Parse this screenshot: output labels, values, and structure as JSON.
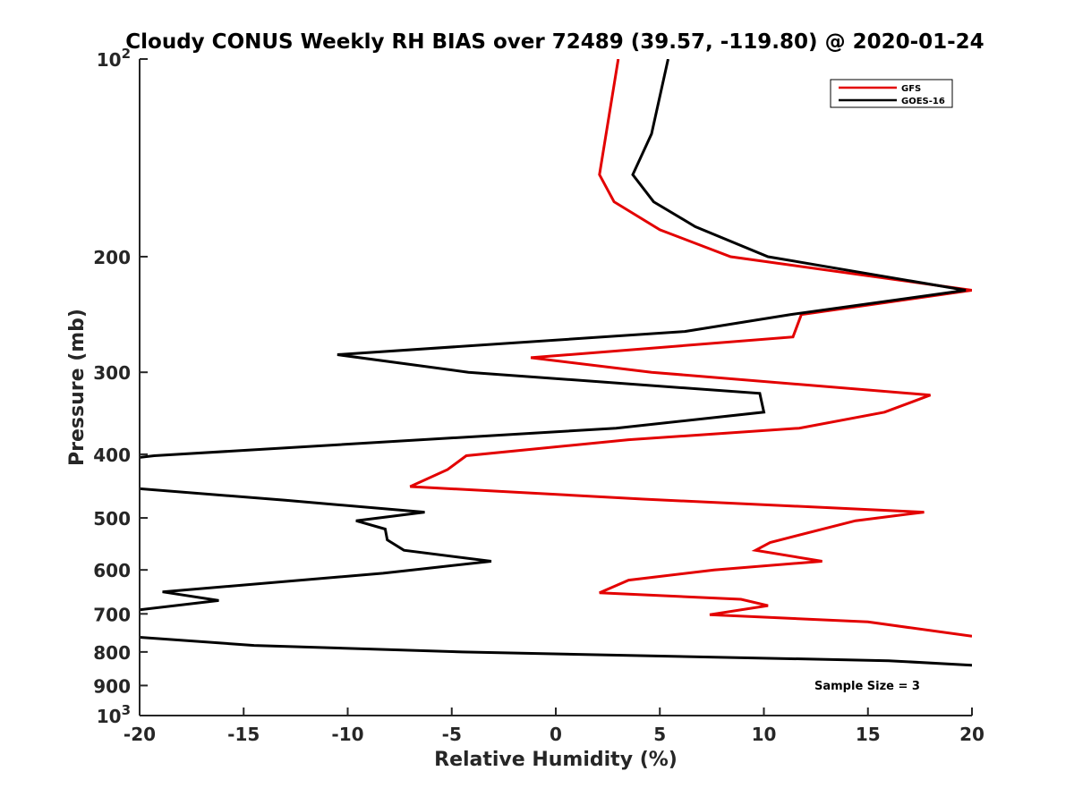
{
  "chart_data": {
    "type": "line",
    "title": "Cloudy CONUS Weekly RH BIAS over 72489 (39.57, -119.80) @ 2020-01-24",
    "xlabel": "Relative Humidity (%)",
    "ylabel": "Pressure (mb)",
    "xlim": [
      -20,
      20
    ],
    "ylim": [
      100,
      1000
    ],
    "y_scale": "log",
    "y_reversed": true,
    "x_ticks": [
      "-20",
      "-15",
      "-10",
      "-5",
      "0",
      "5",
      "10",
      "15",
      "20"
    ],
    "y_ticks": [
      {
        "value": 100,
        "base": "10",
        "exp": "2"
      },
      {
        "value": 200,
        "label": "200"
      },
      {
        "value": 300,
        "label": "300"
      },
      {
        "value": 400,
        "label": "400"
      },
      {
        "value": 500,
        "label": "500"
      },
      {
        "value": 600,
        "label": "600"
      },
      {
        "value": 700,
        "label": "700"
      },
      {
        "value": 800,
        "label": "800"
      },
      {
        "value": 900,
        "label": "900"
      },
      {
        "value": 1000,
        "base": "10",
        "exp": "3"
      }
    ],
    "grid": false,
    "legend_position": "top-right",
    "annotation": "Sample Size = 3",
    "series": [
      {
        "name": "GFS",
        "color": "#e30000",
        "points": [
          [
            3.0,
            100
          ],
          [
            2.1,
            150
          ],
          [
            2.8,
            165
          ],
          [
            5.0,
            182
          ],
          [
            8.4,
            200
          ],
          [
            20.0,
            225
          ],
          [
            11.8,
            245
          ],
          [
            11.4,
            265
          ],
          [
            -1.2,
            285
          ],
          [
            4.6,
            300
          ],
          [
            18.0,
            325
          ],
          [
            15.8,
            345
          ],
          [
            11.7,
            365
          ],
          [
            3.5,
            380
          ],
          [
            -4.3,
            402
          ],
          [
            -5.2,
            422
          ],
          [
            -7.0,
            448
          ],
          [
            4.2,
            468
          ],
          [
            17.7,
            490
          ],
          [
            14.4,
            505
          ],
          [
            10.3,
            545
          ],
          [
            9.6,
            560
          ],
          [
            12.8,
            582
          ],
          [
            7.6,
            600
          ],
          [
            3.5,
            622
          ],
          [
            2.1,
            650
          ],
          [
            8.9,
            665
          ],
          [
            10.2,
            680
          ],
          [
            7.4,
            702
          ],
          [
            15.0,
            720
          ],
          [
            20.0,
            757
          ]
        ]
      },
      {
        "name": "GOES-16",
        "color": "#000000",
        "points": [
          [
            5.4,
            100
          ],
          [
            4.6,
            130
          ],
          [
            3.7,
            150
          ],
          [
            4.7,
            165
          ],
          [
            6.7,
            180
          ],
          [
            10.2,
            200
          ],
          [
            19.7,
            225
          ],
          [
            11.3,
            245
          ],
          [
            6.2,
            260
          ],
          [
            -10.5,
            282
          ],
          [
            -4.2,
            300
          ],
          [
            9.8,
            323
          ],
          [
            10.0,
            345
          ],
          [
            2.9,
            365
          ],
          [
            -19.3,
            402
          ],
          [
            -20.5,
            406
          ],
          null,
          [
            -20.5,
            450
          ],
          [
            -13.0,
            470
          ],
          [
            -6.3,
            490
          ],
          [
            -9.6,
            505
          ],
          [
            -8.2,
            520
          ],
          [
            -8.1,
            540
          ],
          [
            -7.3,
            560
          ],
          [
            -3.1,
            582
          ],
          [
            -8.3,
            607
          ],
          [
            -18.9,
            648
          ],
          [
            -16.2,
            668
          ],
          [
            -20.5,
            693
          ],
          null,
          [
            -20.5,
            758
          ],
          [
            -14.5,
            782
          ],
          [
            -4.5,
            800
          ],
          [
            16.0,
            825
          ],
          [
            20.0,
            838
          ]
        ]
      }
    ]
  }
}
